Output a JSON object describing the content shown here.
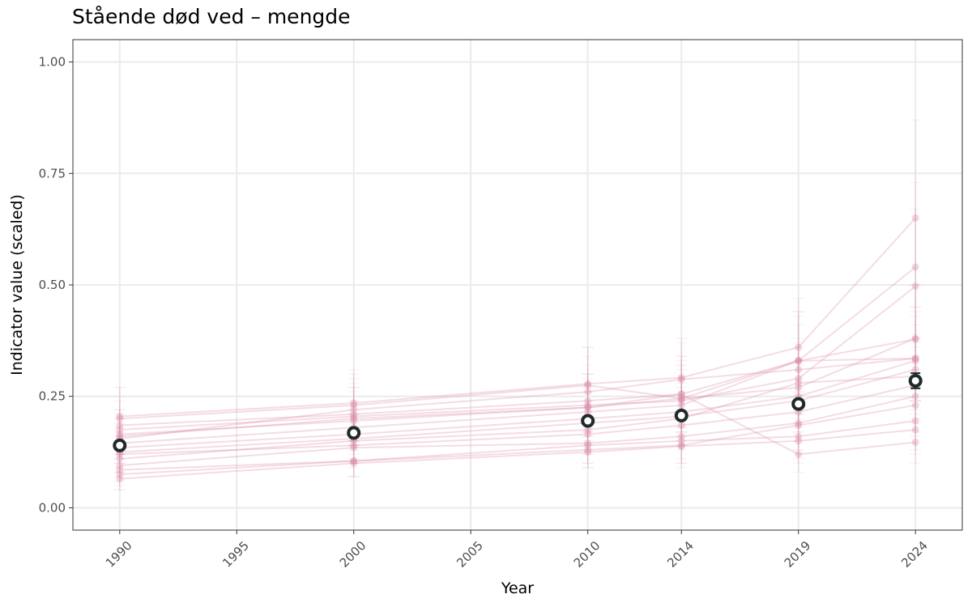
{
  "chart_data": {
    "type": "line",
    "title": "Stående død ved – mengde",
    "xlabel": "Year",
    "ylabel": "Indicator value (scaled)",
    "xlim": [
      1988,
      2026
    ],
    "ylim": [
      -0.05,
      1.05
    ],
    "x_ticks": [
      1990,
      1995,
      2000,
      2005,
      2010,
      2014,
      2019,
      2024
    ],
    "x_tick_labels": [
      "1990",
      "1995",
      "2000",
      "2005",
      "2010",
      "2014",
      "2019",
      "2024"
    ],
    "y_ticks": [
      0,
      0.25,
      0.5,
      0.75,
      1
    ],
    "y_tick_labels": [
      "0.00",
      "0.25",
      "0.50",
      "0.75",
      "1.00"
    ],
    "grid": true,
    "colors": {
      "series": "#d98aa8",
      "mean_stroke": "#1f2a2a",
      "mean_fill": "#ffffff"
    },
    "series": [
      {
        "x": [
          1990,
          2000,
          2010,
          2014,
          2019,
          2024
        ],
        "values": [
          0.205,
          0.235,
          0.278,
          0.292,
          0.36,
          0.65
        ],
        "lower": [
          0.15,
          0.18,
          0.2,
          0.21,
          0.26,
          0.45
        ],
        "upper": [
          0.27,
          0.31,
          0.36,
          0.38,
          0.47,
          0.87
        ]
      },
      {
        "x": [
          1990,
          2000,
          2010,
          2014,
          2019,
          2024
        ],
        "values": [
          0.185,
          0.21,
          0.24,
          0.255,
          0.33,
          0.54
        ],
        "lower": [
          0.13,
          0.15,
          0.17,
          0.18,
          0.24,
          0.38
        ],
        "upper": [
          0.25,
          0.28,
          0.32,
          0.34,
          0.43,
          0.73
        ]
      },
      {
        "x": [
          1990,
          2000,
          2010,
          2014,
          2019,
          2024
        ],
        "values": [
          0.175,
          0.205,
          0.23,
          0.24,
          0.29,
          0.497
        ],
        "lower": [
          0.12,
          0.15,
          0.17,
          0.17,
          0.21,
          0.36
        ],
        "upper": [
          0.24,
          0.27,
          0.3,
          0.32,
          0.38,
          0.67
        ]
      },
      {
        "x": [
          1990,
          2000,
          2010,
          2014,
          2019,
          2024
        ],
        "values": [
          0.165,
          0.195,
          0.225,
          0.245,
          0.27,
          0.38
        ],
        "lower": [
          0.12,
          0.14,
          0.16,
          0.17,
          0.19,
          0.27
        ],
        "upper": [
          0.22,
          0.26,
          0.3,
          0.32,
          0.36,
          0.5
        ]
      },
      {
        "x": [
          1990,
          2000,
          2010,
          2014,
          2019,
          2024
        ],
        "values": [
          0.145,
          0.18,
          0.215,
          0.23,
          0.33,
          0.378
        ],
        "lower": [
          0.1,
          0.13,
          0.15,
          0.16,
          0.24,
          0.27
        ],
        "upper": [
          0.2,
          0.24,
          0.29,
          0.31,
          0.44,
          0.5
        ]
      },
      {
        "x": [
          1990,
          2000,
          2010,
          2014,
          2019,
          2024
        ],
        "values": [
          0.155,
          0.22,
          0.26,
          0.288,
          0.31,
          0.335
        ],
        "lower": [
          0.11,
          0.16,
          0.19,
          0.21,
          0.22,
          0.24
        ],
        "upper": [
          0.21,
          0.29,
          0.34,
          0.37,
          0.41,
          0.44
        ]
      },
      {
        "x": [
          1990,
          2000,
          2010,
          2014,
          2019,
          2024
        ],
        "values": [
          0.135,
          0.165,
          0.2,
          0.215,
          0.25,
          0.33
        ],
        "lower": [
          0.09,
          0.12,
          0.14,
          0.15,
          0.18,
          0.24
        ],
        "upper": [
          0.19,
          0.22,
          0.27,
          0.29,
          0.33,
          0.43
        ]
      },
      {
        "x": [
          1990,
          2000,
          2010,
          2014,
          2019,
          2024
        ],
        "values": [
          0.125,
          0.155,
          0.19,
          0.205,
          0.24,
          0.31
        ],
        "lower": [
          0.08,
          0.11,
          0.13,
          0.14,
          0.17,
          0.22
        ],
        "upper": [
          0.18,
          0.21,
          0.26,
          0.28,
          0.32,
          0.41
        ]
      },
      {
        "x": [
          1990,
          2000,
          2010,
          2014,
          2019,
          2024
        ],
        "values": [
          0.11,
          0.15,
          0.175,
          0.2,
          0.28,
          0.295
        ],
        "lower": [
          0.07,
          0.1,
          0.12,
          0.14,
          0.2,
          0.21
        ],
        "upper": [
          0.16,
          0.21,
          0.24,
          0.27,
          0.37,
          0.39
        ]
      },
      {
        "x": [
          1990,
          2000,
          2010,
          2014,
          2019,
          2024
        ],
        "values": [
          0.12,
          0.14,
          0.165,
          0.185,
          0.215,
          0.275
        ],
        "lower": [
          0.08,
          0.1,
          0.12,
          0.13,
          0.15,
          0.19
        ],
        "upper": [
          0.17,
          0.19,
          0.23,
          0.25,
          0.29,
          0.37
        ]
      },
      {
        "x": [
          1990,
          2000,
          2010,
          2014,
          2019,
          2024
        ],
        "values": [
          0.095,
          0.135,
          0.145,
          0.16,
          0.19,
          0.25
        ],
        "lower": [
          0.06,
          0.09,
          0.1,
          0.11,
          0.13,
          0.17
        ],
        "upper": [
          0.14,
          0.18,
          0.2,
          0.22,
          0.26,
          0.34
        ]
      },
      {
        "x": [
          1990,
          2000,
          2010,
          2014,
          2019,
          2024
        ],
        "values": [
          0.085,
          0.105,
          0.13,
          0.14,
          0.185,
          0.23
        ],
        "lower": [
          0.05,
          0.07,
          0.09,
          0.1,
          0.13,
          0.16
        ],
        "upper": [
          0.13,
          0.15,
          0.18,
          0.2,
          0.25,
          0.31
        ]
      },
      {
        "x": [
          1990,
          2000,
          2010,
          2014,
          2019,
          2024
        ],
        "values": [
          0.075,
          0.105,
          0.14,
          0.15,
          0.16,
          0.195
        ],
        "lower": [
          0.04,
          0.07,
          0.1,
          0.1,
          0.11,
          0.13
        ],
        "upper": [
          0.12,
          0.15,
          0.19,
          0.21,
          0.22,
          0.27
        ]
      },
      {
        "x": [
          1990,
          2000,
          2010,
          2014,
          2019,
          2024
        ],
        "values": [
          0.065,
          0.1,
          0.125,
          0.138,
          0.15,
          0.175
        ],
        "lower": [
          0.04,
          0.07,
          0.09,
          0.09,
          0.1,
          0.12
        ],
        "upper": [
          0.1,
          0.14,
          0.17,
          0.19,
          0.21,
          0.24
        ]
      },
      {
        "x": [
          1990,
          2000,
          2010,
          2014,
          2019,
          2024
        ],
        "values": [
          0.16,
          0.2,
          0.225,
          0.255,
          0.12,
          0.147
        ],
        "lower": [
          0.11,
          0.14,
          0.16,
          0.18,
          0.08,
          0.1
        ],
        "upper": [
          0.22,
          0.27,
          0.3,
          0.34,
          0.17,
          0.2
        ]
      },
      {
        "x": [
          1990,
          2000,
          2010,
          2014,
          2019,
          2024
        ],
        "values": [
          0.2,
          0.23,
          0.275,
          0.245,
          0.33,
          0.335
        ],
        "lower": [
          0.14,
          0.17,
          0.2,
          0.17,
          0.24,
          0.24
        ],
        "upper": [
          0.27,
          0.3,
          0.36,
          0.33,
          0.44,
          0.45
        ]
      }
    ],
    "mean": {
      "x": [
        1990,
        2000,
        2010,
        2014,
        2019,
        2024
      ],
      "values": [
        0.14,
        0.168,
        0.195,
        0.207,
        0.233,
        0.285
      ],
      "lower": [
        0.134,
        0.161,
        0.187,
        0.198,
        0.224,
        0.268
      ],
      "upper": [
        0.146,
        0.175,
        0.203,
        0.216,
        0.242,
        0.302
      ]
    }
  }
}
